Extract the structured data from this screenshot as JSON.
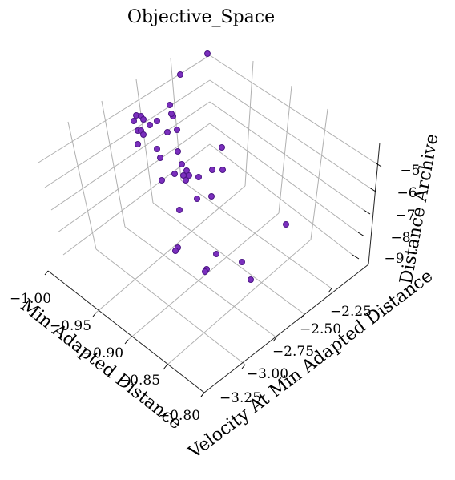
{
  "chart_data": {
    "type": "scatter3d",
    "title": "Objective_Space",
    "xlabel": "Min Adapted Distance",
    "ylabel": "Velocity At Min Adapted Distance",
    "zlabel": "Distance Archive",
    "x_ticks": [
      "−1.00",
      "−0.95",
      "−0.90",
      "−0.85",
      "−0.80"
    ],
    "y_ticks": [
      "−3.25",
      "−3.00",
      "−2.75",
      "−2.50",
      "−2.25"
    ],
    "z_ticks": [
      "−9",
      "−8",
      "−7",
      "−6",
      "−5"
    ],
    "marker_color": "#7b2fbe",
    "marker_edge_color": "#4b1585"
  }
}
